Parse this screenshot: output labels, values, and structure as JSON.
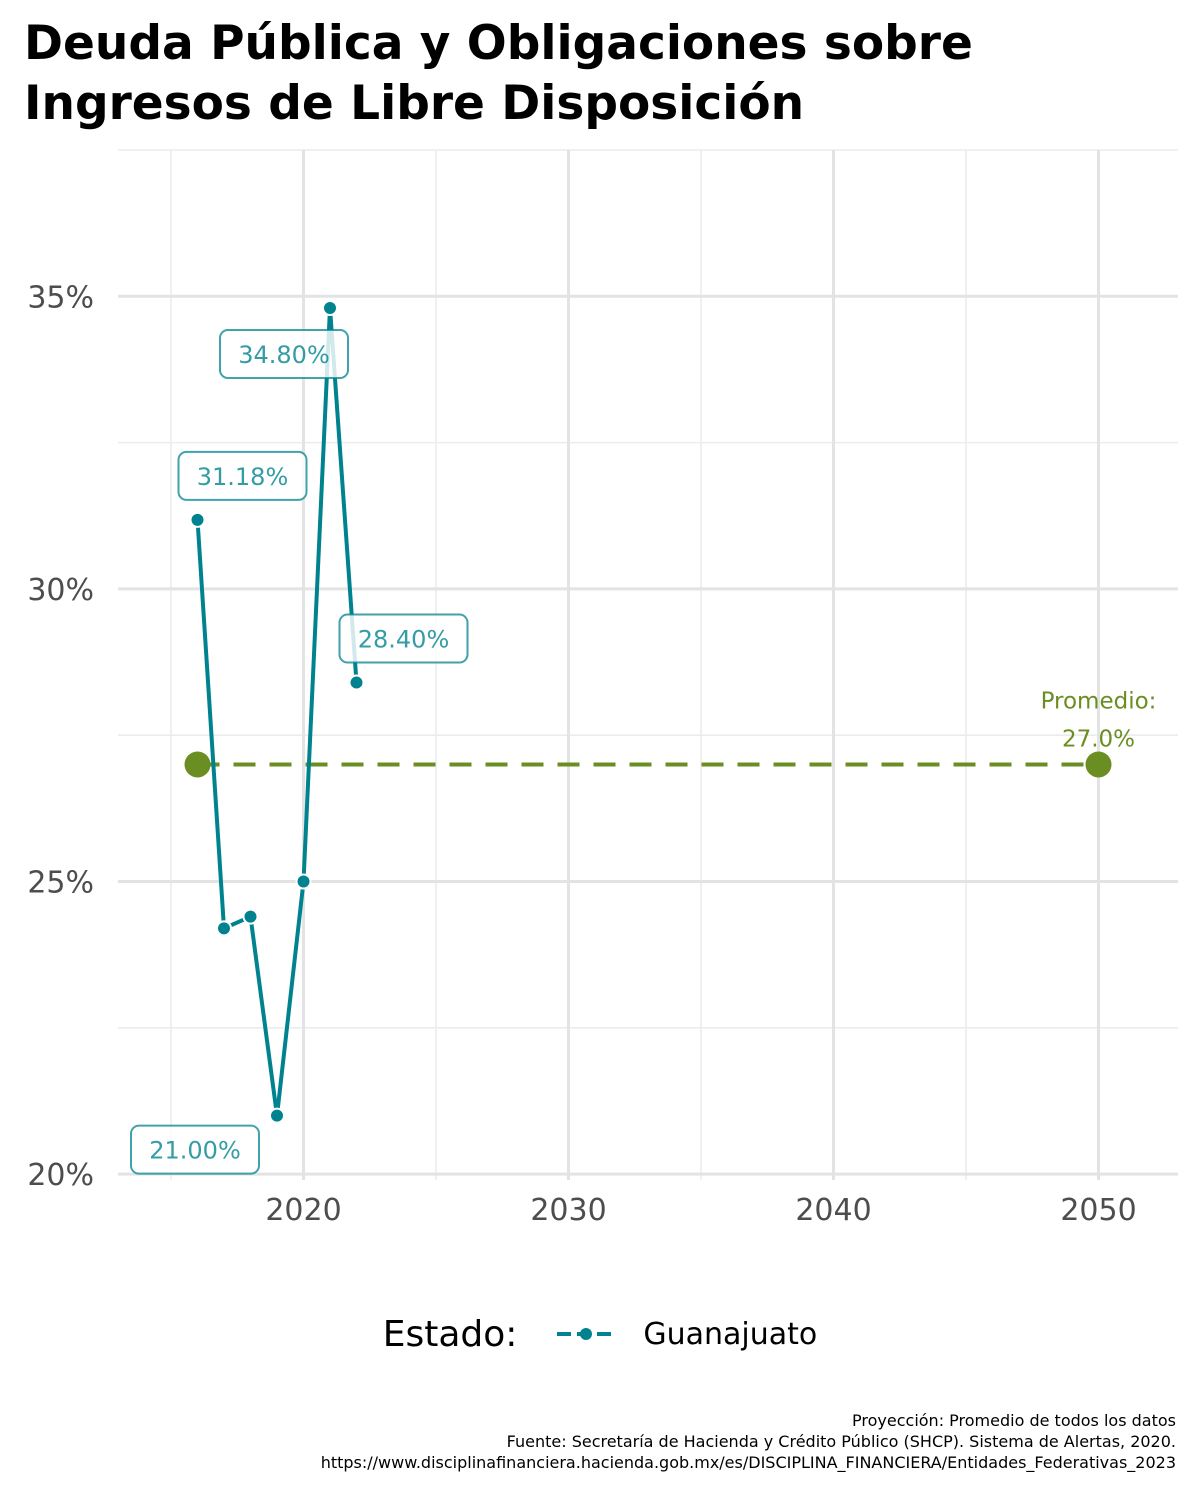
{
  "title_line1": "Deuda Pública y Obligaciones sobre",
  "title_line2": "Ingresos de Libre Disposición",
  "chart_data": {
    "type": "line",
    "x_ticks": [
      "2020",
      "2030",
      "2040",
      "2050"
    ],
    "y_ticks": [
      "20%",
      "25%",
      "30%",
      "35%"
    ],
    "xlim": [
      2013,
      2053
    ],
    "ylim": [
      19.9,
      37.5
    ],
    "grid": true,
    "series": [
      {
        "name": "Guanajuato",
        "color": "#00838f",
        "x": [
          2016,
          2017,
          2018,
          2019,
          2020,
          2021,
          2022
        ],
        "y": [
          31.18,
          24.2,
          24.4,
          21.0,
          25.0,
          34.8,
          28.4
        ]
      }
    ],
    "data_labels": [
      {
        "x": 2016,
        "y": 31.18,
        "text": "31.18%"
      },
      {
        "x": 2019,
        "y": 21.0,
        "text": "21.00%"
      },
      {
        "x": 2021,
        "y": 34.8,
        "text": "34.80%"
      },
      {
        "x": 2022,
        "y": 28.4,
        "text": "28.40%"
      }
    ],
    "average": {
      "x": [
        2016,
        2050
      ],
      "y": 27.0,
      "color": "#6b8e23",
      "label_line1": "Promedio:",
      "label_line2": "27.0%"
    },
    "legend": {
      "title": "Estado:",
      "placement": "bottom"
    }
  },
  "caption": [
    "Proyección: Promedio de todos los datos",
    "Fuente: Secretaría de Hacienda y Crédito Público (SHCP). Sistema de Alertas, 2020.",
    "https://www.disciplinafinanciera.hacienda.gob.mx/es/DISCIPLINA_FINANCIERA/Entidades_Federativas_2023"
  ]
}
